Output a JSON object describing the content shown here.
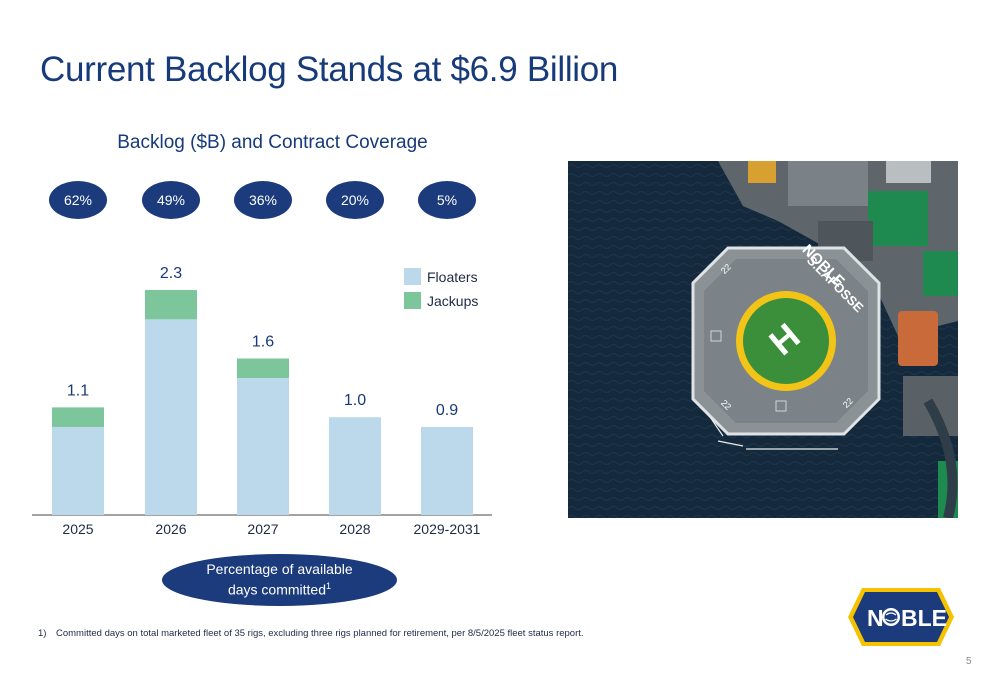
{
  "title": "Current Backlog Stands at $6.9 Billion",
  "chart_data": {
    "type": "bar",
    "stacked": true,
    "title": "Backlog ($B) and Contract Coverage",
    "categories": [
      "2025",
      "2026",
      "2027",
      "2028",
      "2029-2031"
    ],
    "series": [
      {
        "name": "Floaters",
        "color": "#bcd9ec",
        "values": [
          0.9,
          2.0,
          1.4,
          1.0,
          0.9
        ]
      },
      {
        "name": "Jackups",
        "color": "#7dc59b",
        "values": [
          0.2,
          0.3,
          0.2,
          0.0,
          0.0
        ]
      }
    ],
    "totals": [
      "1.1",
      "2.3",
      "1.6",
      "1.0",
      "0.9"
    ],
    "coverage": [
      "62%",
      "49%",
      "36%",
      "20%",
      "5%"
    ],
    "ylim": [
      0,
      2.3
    ],
    "grid": false,
    "legend": "top-right"
  },
  "callout": {
    "line1": "Percentage of available",
    "line2": "days committed",
    "sup": "1"
  },
  "footnote": {
    "number": "1)",
    "text": "Committed days on total marketed fleet of 35 rigs, excluding three rigs planned for retirement, per 8/5/2025 fleet status report."
  },
  "photo": {
    "marker": "22",
    "ship_name_1": "NOBLE",
    "ship_name_2": "S.LAFOSSE",
    "helipad_letter": "H"
  },
  "logo": {
    "text_left": "N",
    "text_right": "BLE",
    "color": "#1b3b7c",
    "accent": "#f5c200"
  },
  "page_number": "5"
}
